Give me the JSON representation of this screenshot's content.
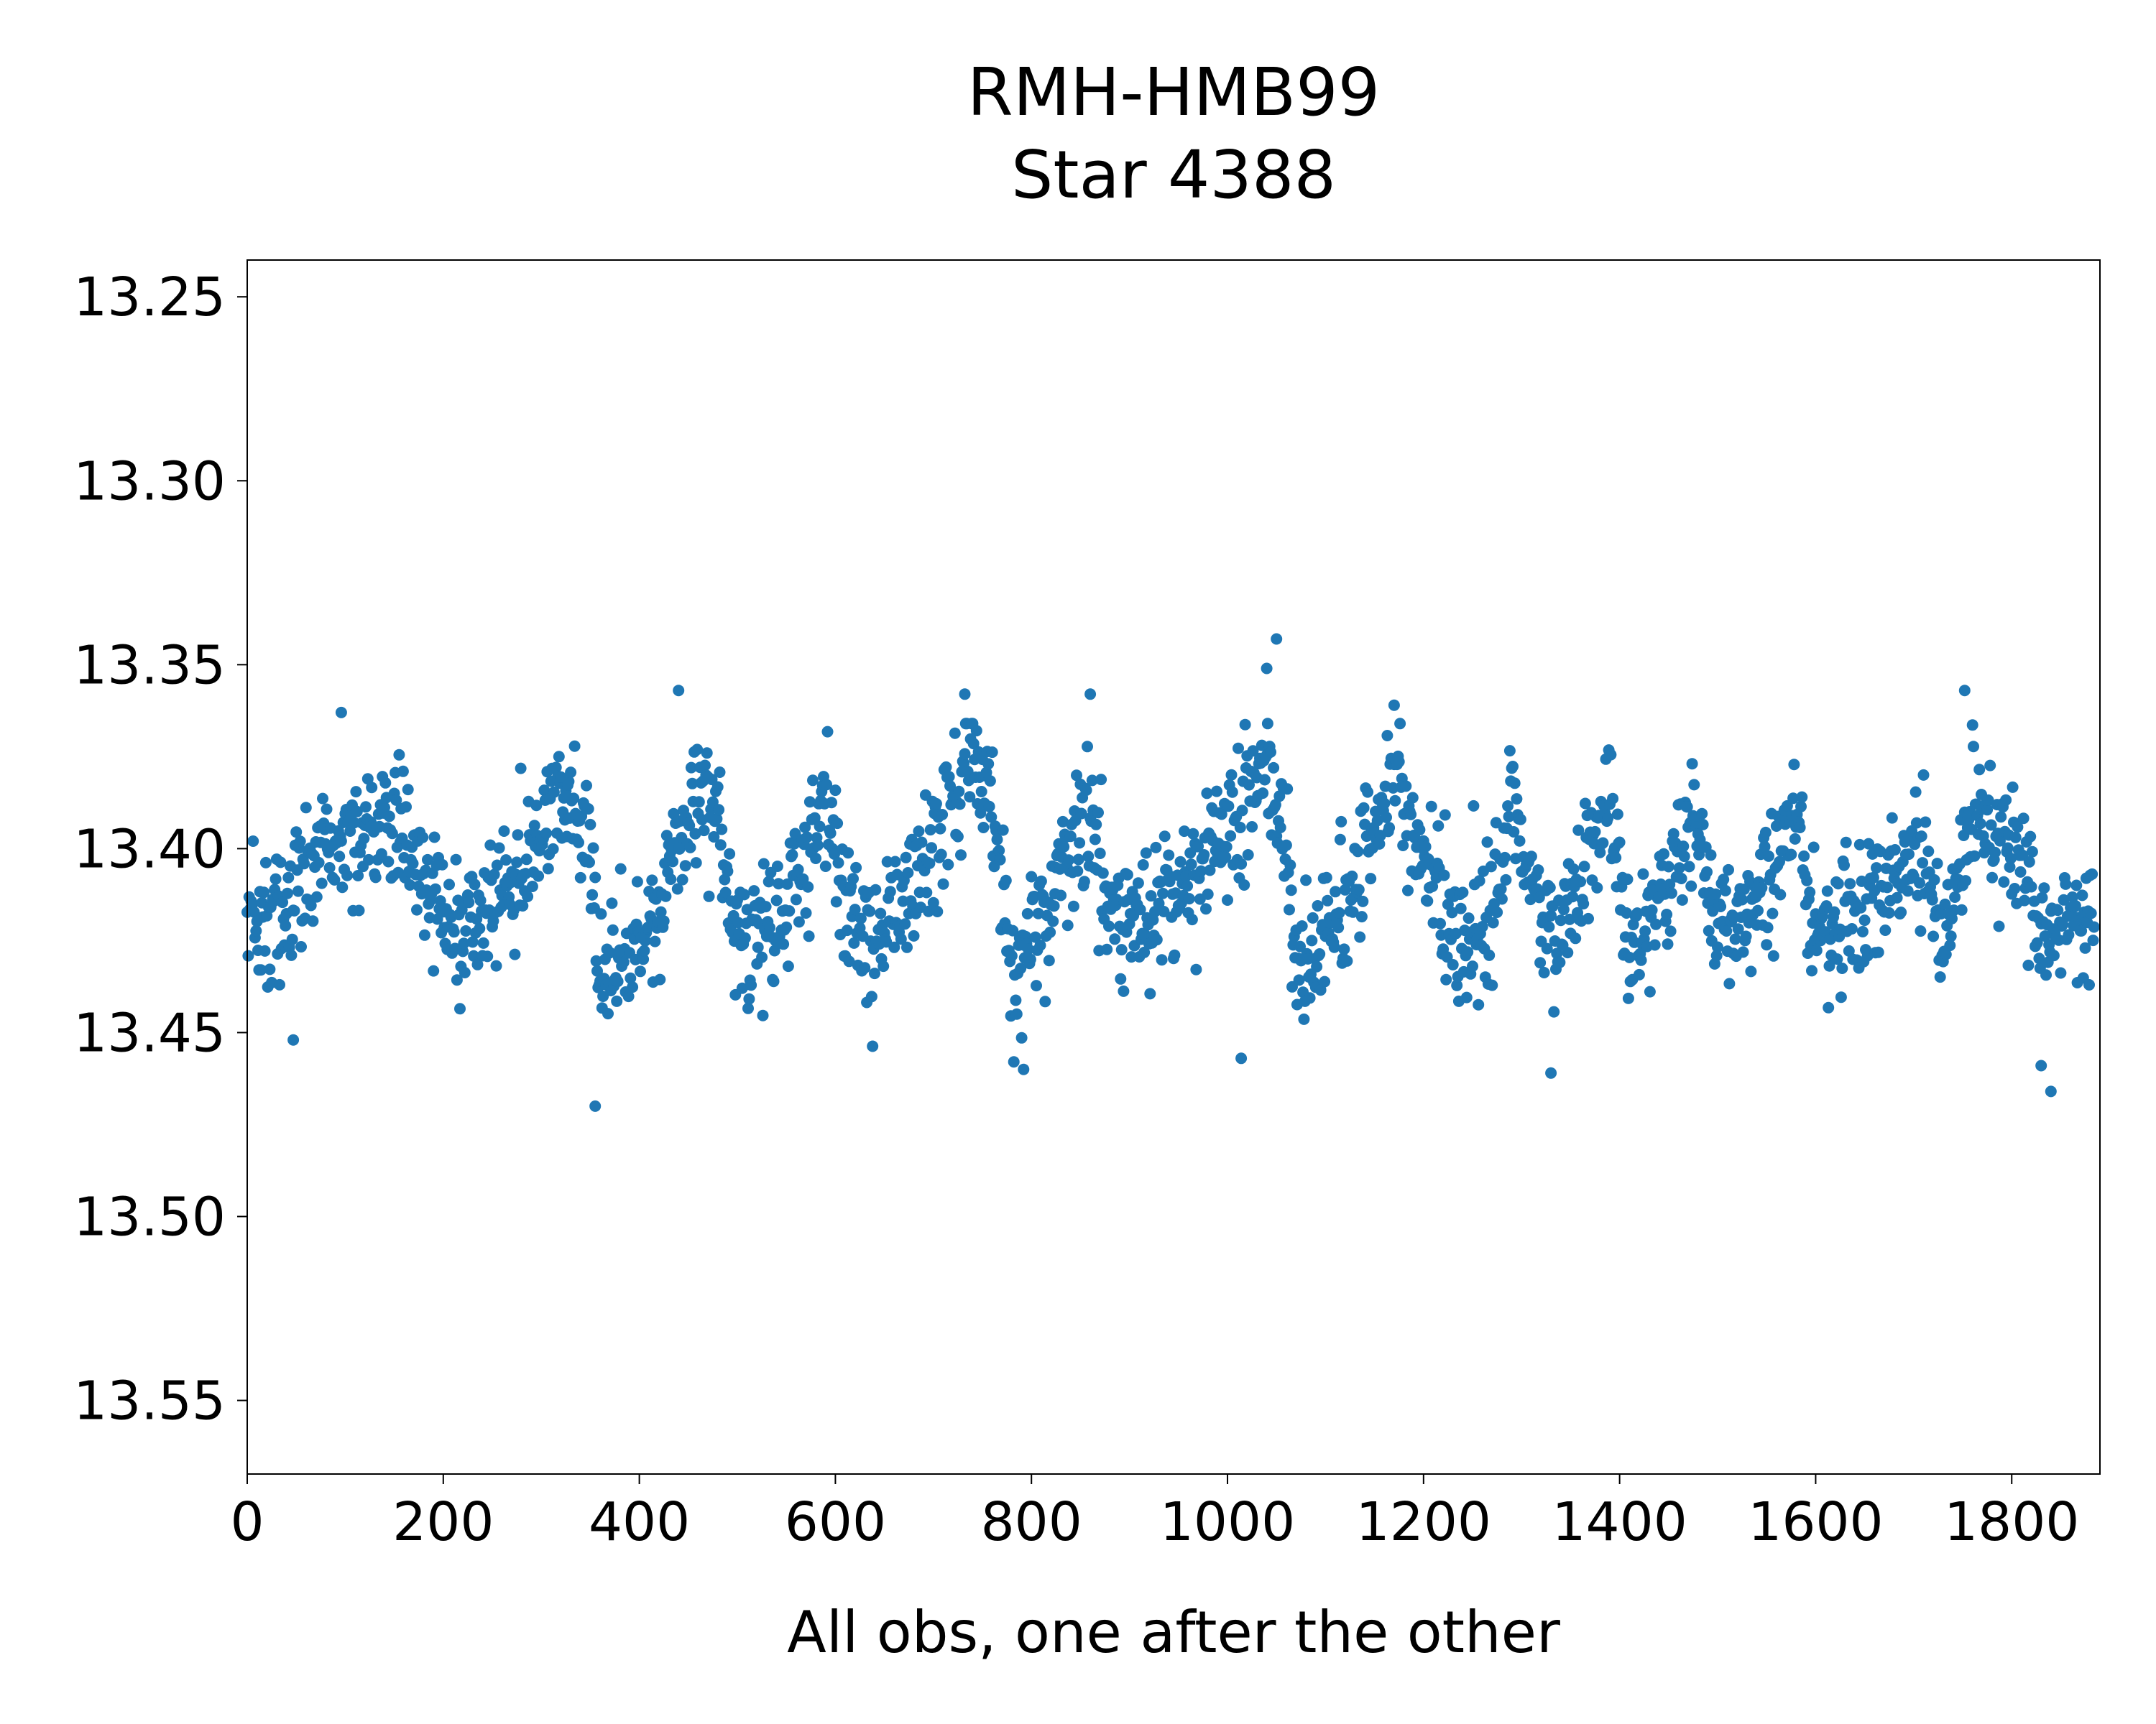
{
  "chart_data": {
    "type": "scatter",
    "title": "RMH-HMB99",
    "subtitle": "Star 4388",
    "xlabel": "All obs, one after the other",
    "ylabel": "",
    "xlim": [
      0,
      1890
    ],
    "ylim": [
      13.57,
      13.24
    ],
    "y_inverted": true,
    "grid": false,
    "x_ticks": [
      0,
      200,
      400,
      600,
      800,
      1000,
      1200,
      1400,
      1600,
      1800
    ],
    "x_tick_labels": [
      "0",
      "200",
      "400",
      "600",
      "800",
      "1000",
      "1200",
      "1400",
      "1600",
      "1800"
    ],
    "y_ticks": [
      13.25,
      13.3,
      13.35,
      13.4,
      13.45,
      13.5,
      13.55
    ],
    "y_tick_labels": [
      "13.25",
      "13.30",
      "13.35",
      "13.40",
      "13.45",
      "13.50",
      "13.55"
    ],
    "marker_color": "#1f77b4",
    "n_points": 1885,
    "trend_knots": [
      [
        0,
        13.418
      ],
      [
        40,
        13.415
      ],
      [
        100,
        13.395
      ],
      [
        150,
        13.392
      ],
      [
        220,
        13.425
      ],
      [
        290,
        13.405
      ],
      [
        320,
        13.38
      ],
      [
        345,
        13.395
      ],
      [
        360,
        13.435
      ],
      [
        400,
        13.43
      ],
      [
        440,
        13.4
      ],
      [
        460,
        13.385
      ],
      [
        480,
        13.392
      ],
      [
        500,
        13.425
      ],
      [
        540,
        13.42
      ],
      [
        590,
        13.39
      ],
      [
        615,
        13.42
      ],
      [
        640,
        13.425
      ],
      [
        700,
        13.4
      ],
      [
        740,
        13.375
      ],
      [
        760,
        13.385
      ],
      [
        780,
        13.435
      ],
      [
        820,
        13.415
      ],
      [
        860,
        13.385
      ],
      [
        880,
        13.42
      ],
      [
        930,
        13.42
      ],
      [
        980,
        13.4
      ],
      [
        1040,
        13.38
      ],
      [
        1055,
        13.385
      ],
      [
        1070,
        13.43
      ],
      [
        1110,
        13.42
      ],
      [
        1140,
        13.4
      ],
      [
        1170,
        13.38
      ],
      [
        1200,
        13.4
      ],
      [
        1230,
        13.425
      ],
      [
        1270,
        13.42
      ],
      [
        1290,
        13.39
      ],
      [
        1310,
        13.405
      ],
      [
        1330,
        13.425
      ],
      [
        1360,
        13.41
      ],
      [
        1390,
        13.385
      ],
      [
        1410,
        13.43
      ],
      [
        1440,
        13.415
      ],
      [
        1470,
        13.395
      ],
      [
        1500,
        13.42
      ],
      [
        1530,
        13.42
      ],
      [
        1580,
        13.39
      ],
      [
        1600,
        13.425
      ],
      [
        1640,
        13.415
      ],
      [
        1680,
        13.41
      ],
      [
        1710,
        13.4
      ],
      [
        1730,
        13.425
      ],
      [
        1760,
        13.39
      ],
      [
        1790,
        13.4
      ],
      [
        1810,
        13.405
      ],
      [
        1830,
        13.425
      ],
      [
        1890,
        13.415
      ]
    ],
    "scatter_sd": 0.009,
    "outliers": [
      {
        "x": 47,
        "y": 13.452
      },
      {
        "x": 96,
        "y": 13.363
      },
      {
        "x": 355,
        "y": 13.47
      },
      {
        "x": 440,
        "y": 13.357
      },
      {
        "x": 732,
        "y": 13.358
      },
      {
        "x": 792,
        "y": 13.46
      },
      {
        "x": 860,
        "y": 13.358
      },
      {
        "x": 1050,
        "y": 13.343
      },
      {
        "x": 1040,
        "y": 13.351
      },
      {
        "x": 1014,
        "y": 13.457
      },
      {
        "x": 1170,
        "y": 13.361
      },
      {
        "x": 1330,
        "y": 13.461
      },
      {
        "x": 1752,
        "y": 13.357
      },
      {
        "x": 1840,
        "y": 13.466
      },
      {
        "x": 1830,
        "y": 13.459
      }
    ]
  }
}
